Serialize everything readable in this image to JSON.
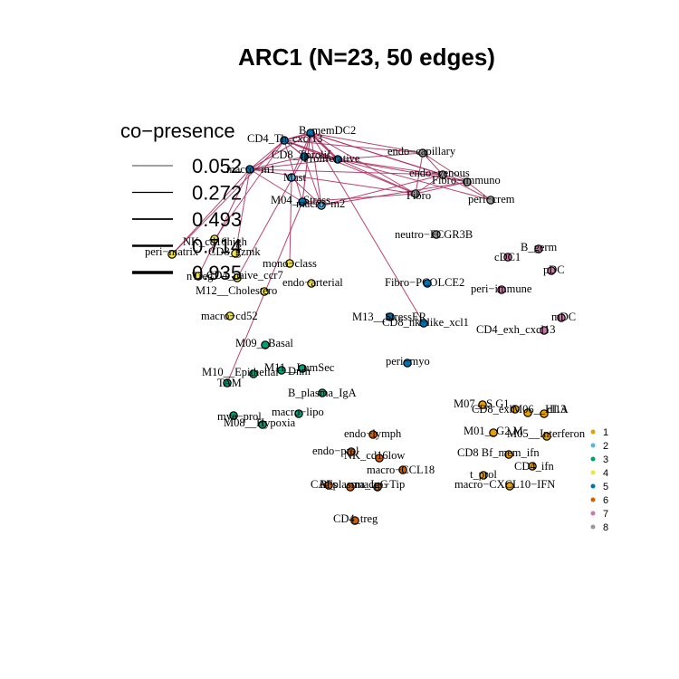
{
  "title": "ARC1 (N=23, 50 edges)",
  "edge_color": "#b03060",
  "legend_width": {
    "title": "co−presence",
    "values": [
      "0.052",
      "0.272",
      "0.493",
      "0.714",
      "0.935"
    ]
  },
  "legend_cluster": {
    "items": [
      {
        "label": "1",
        "color": "#e69f00"
      },
      {
        "label": "2",
        "color": "#56b4e9"
      },
      {
        "label": "3",
        "color": "#009e73"
      },
      {
        "label": "4",
        "color": "#f0e442"
      },
      {
        "label": "5",
        "color": "#0072b2"
      },
      {
        "label": "6",
        "color": "#d55e00"
      },
      {
        "label": "7",
        "color": "#cc79a7"
      },
      {
        "label": "8",
        "color": "#999999"
      }
    ]
  },
  "nodes": [
    {
      "id": "B_memDC2",
      "label": "B_memDC2",
      "cluster": 5
    },
    {
      "id": "CD4_Th_cxcl13",
      "label": "CD4_Th_cxcl13",
      "cluster": 5
    },
    {
      "id": "CD8_Tprolif",
      "label": "CD8_Tprolif",
      "cluster": 5
    },
    {
      "id": "Prolif",
      "label": "Proliferative",
      "cluster": 5
    },
    {
      "id": "macro_m1",
      "label": "macro−m1",
      "cluster": 5
    },
    {
      "id": "Mast",
      "label": "Mast",
      "cluster": 2
    },
    {
      "id": "M04_Stress",
      "label": "M04__Stress",
      "cluster": 5
    },
    {
      "id": "macro_m2",
      "label": "macro−m2",
      "cluster": 2
    },
    {
      "id": "endo_capillary",
      "label": "endo−capillary",
      "cluster": 8
    },
    {
      "id": "endo_venous",
      "label": "endo−venous",
      "cluster": 8
    },
    {
      "id": "Fibro_immuno",
      "label": "Fibro−immuno",
      "cluster": 8
    },
    {
      "id": "Fibro",
      "label": "Fibro",
      "cluster": 8
    },
    {
      "id": "peri_crem",
      "label": "peri−crem",
      "cluster": 8
    },
    {
      "id": "neutro_FCGR3B",
      "label": "neutro−FCGR3B",
      "cluster": 8
    },
    {
      "id": "B_germ",
      "label": "B_germ",
      "cluster": 7
    },
    {
      "id": "cDC1",
      "label": "cDC1",
      "cluster": 7
    },
    {
      "id": "pDC",
      "label": "pDC",
      "cluster": 7
    },
    {
      "id": "peri_immune",
      "label": "peri−immune",
      "cluster": 7
    },
    {
      "id": "mDC",
      "label": "mDC",
      "cluster": 7
    },
    {
      "id": "CD4_exh_cxcl13",
      "label": "CD4_exh_cxcl13",
      "cluster": 7
    },
    {
      "id": "Fibro_PCOLCE2",
      "label": "Fibro−PCOLCE2",
      "cluster": 5
    },
    {
      "id": "M13_StressER",
      "label": "M13__StressER",
      "cluster": 5
    },
    {
      "id": "CD8_nklike",
      "label": "CD8_nk−like_xcl1",
      "cluster": 5
    },
    {
      "id": "peri_myo",
      "label": "peri−myo",
      "cluster": 5
    },
    {
      "id": "NK_cd16high",
      "label": "NK_cd16high",
      "cluster": 4
    },
    {
      "id": "peri_matrix",
      "label": "peri−matrix",
      "cluster": 4
    },
    {
      "id": "CD8_gzmk",
      "label": "CD8_gzmk",
      "cluster": 4
    },
    {
      "id": "mono_class",
      "label": "mono−class",
      "cluster": 4
    },
    {
      "id": "nTreg",
      "label": "nTreg",
      "cluster": 4
    },
    {
      "id": "CD4_naive_ccr7",
      "label": "CD4_naive_ccr7",
      "cluster": 4
    },
    {
      "id": "endo_arterial",
      "label": "endo−arterial",
      "cluster": 4
    },
    {
      "id": "M12_Cholestero",
      "label": "M12__Cholestero",
      "cluster": 4
    },
    {
      "id": "macro_cd52",
      "label": "macro−cd52",
      "cluster": 4
    },
    {
      "id": "M09_Basal",
      "label": "M09__Basal",
      "cluster": 3
    },
    {
      "id": "M10_Epithelial",
      "label": "M10__Epithelial",
      "cluster": 3
    },
    {
      "id": "M11_LumSec",
      "label": "M11__LumSec",
      "cluster": 3
    },
    {
      "id": "TAM",
      "label": "TAM",
      "cluster": 3
    },
    {
      "id": "Dnm",
      "label": "Dnm",
      "cluster": 3
    },
    {
      "id": "B_plasma_IgA",
      "label": "B_plasma_IgA",
      "cluster": 3
    },
    {
      "id": "mye_prol",
      "label": "mye−prol",
      "cluster": 3
    },
    {
      "id": "macro_lipo",
      "label": "macro−lipo",
      "cluster": 3
    },
    {
      "id": "M08_Hypoxia",
      "label": "M08__Hypoxia",
      "cluster": 3
    },
    {
      "id": "endo_lymph",
      "label": "endo−lymph",
      "cluster": 6
    },
    {
      "id": "endo_prol",
      "label": "endo−prol",
      "cluster": 6
    },
    {
      "id": "NK_cd16low",
      "label": "NK_cd16low",
      "cluster": 6
    },
    {
      "id": "macro_CCL18",
      "label": "macro−CCL18",
      "cluster": 6
    },
    {
      "id": "CAFs",
      "label": "CAFs",
      "cluster": 6
    },
    {
      "id": "B_plasma_IgG",
      "label": "B_plasma_IgG",
      "cluster": 6
    },
    {
      "id": "macro_Tip",
      "label": "macro−Tip",
      "cluster": 6
    },
    {
      "id": "CD4_treg",
      "label": "CD4_treg",
      "cluster": 6
    },
    {
      "id": "M07_S_G1",
      "label": "M07__S.G1",
      "cluster": 1
    },
    {
      "id": "CD8_exh",
      "label": "CD8_exh",
      "cluster": 1
    },
    {
      "id": "M06_HLA",
      "label": "M06__HLA",
      "cluster": 1
    },
    {
      "id": "cl13",
      "label": "cl13",
      "cluster": 1
    },
    {
      "id": "M01_G2M",
      "label": "M01__G2.M",
      "cluster": 1
    },
    {
      "id": "M05_Interferon",
      "label": "M05__Interferon",
      "cluster": 1
    },
    {
      "id": "CD8_Bmem_ifn",
      "label": "CD8 Bf_mem_ifn",
      "cluster": 1
    },
    {
      "id": "CD4_ifn",
      "label": "CD4_ifn",
      "cluster": 1
    },
    {
      "id": "t_prol",
      "label": "t_prol",
      "cluster": 1
    },
    {
      "id": "macro_CXCL10_IFN",
      "label": "macro−CXCL10−IFN",
      "cluster": 1
    }
  ]
}
